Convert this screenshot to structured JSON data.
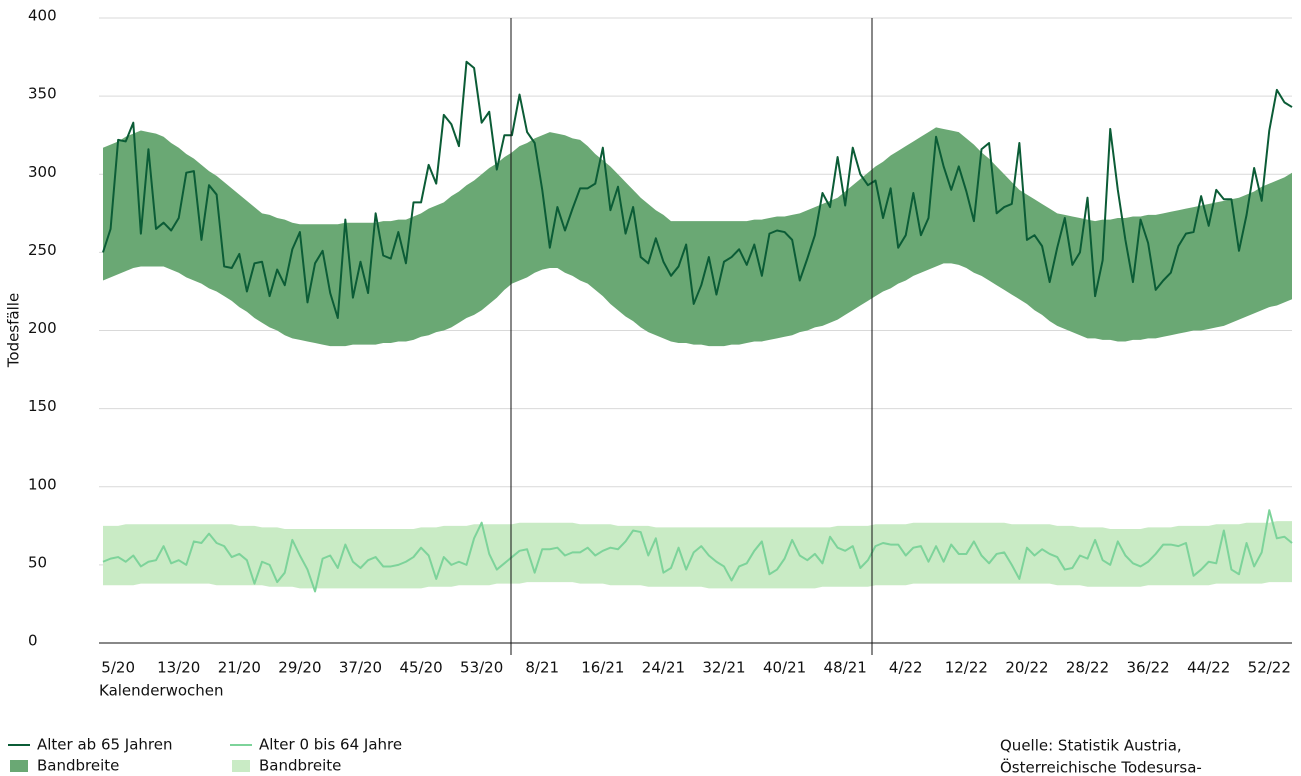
{
  "chart_data": {
    "type": "line",
    "ylabel": "Todesfälle",
    "xlabel": "Kalenderwochen",
    "source": [
      "Quelle: Statistik Austria,",
      "Österreichische Todesursa-"
    ],
    "ylim": [
      0,
      400
    ],
    "yticks": [
      0,
      50,
      100,
      150,
      200,
      250,
      300,
      350,
      400
    ],
    "grid": true,
    "categories": [
      null,
      null,
      "5/20",
      null,
      null,
      null,
      null,
      null,
      null,
      null,
      "13/20",
      null,
      null,
      null,
      null,
      null,
      null,
      null,
      "21/20",
      null,
      null,
      null,
      null,
      null,
      null,
      null,
      "29/20",
      null,
      null,
      null,
      null,
      null,
      null,
      null,
      "37/20",
      null,
      null,
      null,
      null,
      null,
      null,
      null,
      "45/20",
      null,
      null,
      null,
      null,
      null,
      null,
      null,
      "53/20",
      null,
      null,
      null,
      null,
      null,
      null,
      null,
      "8/21",
      null,
      null,
      null,
      null,
      null,
      null,
      null,
      "16/21",
      null,
      null,
      null,
      null,
      null,
      null,
      null,
      "24/21",
      null,
      null,
      null,
      null,
      null,
      null,
      null,
      "32/21",
      null,
      null,
      null,
      null,
      null,
      null,
      null,
      "40/21",
      null,
      null,
      null,
      null,
      null,
      null,
      null,
      "48/21",
      null,
      null,
      null,
      null,
      null,
      null,
      null,
      "4/22",
      null,
      null,
      null,
      null,
      null,
      null,
      null,
      "12/22",
      null,
      null,
      null,
      null,
      null,
      null,
      null,
      "20/22",
      null,
      null,
      null,
      null,
      null,
      null,
      null,
      "28/22",
      null,
      null,
      null,
      null,
      null,
      null,
      null,
      "36/22",
      null,
      null,
      null,
      null,
      null,
      null,
      null,
      "44/22",
      null,
      null,
      null,
      null,
      null,
      null,
      null,
      "52/22",
      null,
      null,
      null
    ],
    "series": [
      {
        "name": "Alter ab 65 Jahren",
        "color": "#0b5c36",
        "values": [
          250,
          265,
          322,
          321,
          333,
          262,
          316,
          265,
          269,
          264,
          272,
          301,
          302,
          258,
          293,
          287,
          241,
          240,
          249,
          225,
          243,
          244,
          222,
          239,
          229,
          252,
          263,
          218,
          243,
          251,
          224,
          208,
          271,
          221,
          244,
          224,
          275,
          248,
          246,
          263,
          243,
          282,
          282,
          306,
          294,
          338,
          332,
          318,
          372,
          368,
          333,
          340,
          303,
          325,
          325,
          351,
          327,
          320,
          290,
          253,
          279,
          264,
          278,
          291,
          291,
          294,
          317,
          277,
          292,
          262,
          279,
          247,
          243,
          259,
          244,
          235,
          241,
          255,
          217,
          229,
          247,
          223,
          244,
          247,
          252,
          242,
          255,
          235,
          262,
          264,
          263,
          258,
          232,
          246,
          261,
          288,
          279,
          311,
          280,
          317,
          300,
          293,
          296,
          272,
          291,
          253,
          261,
          288,
          261,
          272,
          324,
          305,
          290,
          305,
          289,
          270,
          316,
          320,
          275,
          279,
          281,
          320,
          258,
          261,
          254,
          231,
          253,
          272,
          242,
          250,
          285,
          222,
          245,
          329,
          290,
          258,
          231,
          271,
          256,
          226,
          232,
          237,
          254,
          262,
          263,
          286,
          267,
          290,
          284,
          284,
          251,
          274,
          304,
          283,
          328,
          354,
          346,
          343
        ]
      },
      {
        "name": "Bandbreite",
        "color": "#6aa874",
        "upper": [
          317,
          319,
          321,
          324,
          326,
          328,
          327,
          326,
          324,
          320,
          317,
          313,
          310,
          306,
          302,
          299,
          295,
          291,
          287,
          283,
          279,
          275,
          274,
          272,
          271,
          269,
          268,
          268,
          268,
          268,
          268,
          268,
          269,
          269,
          269,
          269,
          269,
          270,
          270,
          271,
          271,
          273,
          275,
          278,
          280,
          282,
          286,
          289,
          293,
          296,
          300,
          304,
          307,
          311,
          314,
          318,
          320,
          323,
          325,
          327,
          326,
          325,
          323,
          322,
          318,
          313,
          309,
          305,
          300,
          295,
          290,
          285,
          281,
          277,
          274,
          270,
          270,
          270,
          270,
          270,
          270,
          270,
          270,
          270,
          270,
          270,
          271,
          271,
          272,
          273,
          273,
          274,
          275,
          277,
          279,
          281,
          283,
          285,
          289,
          293,
          297,
          301,
          305,
          308,
          312,
          315,
          318,
          321,
          324,
          327,
          330,
          329,
          328,
          327,
          323,
          319,
          314,
          310,
          305,
          300,
          295,
          290,
          287,
          284,
          281,
          278,
          275,
          274,
          273,
          272,
          271,
          270,
          271,
          271,
          272,
          272,
          273,
          273,
          274,
          274,
          275,
          276,
          277,
          278,
          279,
          280,
          281,
          282,
          283,
          284,
          285,
          287,
          289,
          292,
          294,
          296,
          298,
          301
        ],
        "lower": [
          232,
          234,
          236,
          238,
          240,
          241,
          241,
          241,
          241,
          239,
          237,
          234,
          232,
          230,
          227,
          225,
          222,
          219,
          215,
          212,
          208,
          205,
          202,
          200,
          197,
          195,
          194,
          193,
          192,
          191,
          190,
          190,
          190,
          191,
          191,
          191,
          191,
          192,
          192,
          193,
          193,
          194,
          196,
          197,
          199,
          200,
          202,
          205,
          208,
          210,
          213,
          217,
          221,
          226,
          230,
          232,
          234,
          237,
          239,
          240,
          240,
          237,
          235,
          232,
          230,
          226,
          222,
          217,
          213,
          209,
          206,
          202,
          199,
          197,
          195,
          193,
          192,
          192,
          191,
          191,
          190,
          190,
          190,
          191,
          191,
          192,
          193,
          193,
          194,
          195,
          196,
          197,
          199,
          200,
          202,
          203,
          205,
          207,
          210,
          213,
          216,
          219,
          222,
          225,
          227,
          230,
          232,
          235,
          237,
          239,
          241,
          243,
          243,
          242,
          240,
          237,
          235,
          232,
          229,
          226,
          223,
          220,
          217,
          213,
          210,
          206,
          203,
          201,
          199,
          197,
          195,
          195,
          194,
          194,
          193,
          193,
          194,
          194,
          195,
          195,
          196,
          197,
          198,
          199,
          200,
          200,
          201,
          202,
          203,
          205,
          207,
          209,
          211,
          213,
          215,
          216,
          218,
          220
        ]
      },
      {
        "name": "Alter 0 bis 64 Jahre",
        "color": "#7dd39a",
        "values": [
          52,
          54,
          55,
          52,
          56,
          49,
          52,
          53,
          62,
          51,
          53,
          50,
          65,
          64,
          70,
          64,
          62,
          55,
          57,
          53,
          38,
          52,
          50,
          39,
          45,
          66,
          56,
          47,
          33,
          54,
          56,
          48,
          63,
          52,
          48,
          53,
          55,
          49,
          49,
          50,
          52,
          55,
          61,
          56,
          41,
          55,
          50,
          52,
          50,
          67,
          77,
          57,
          47,
          51,
          55,
          59,
          60,
          45,
          60,
          60,
          61,
          56,
          58,
          58,
          61,
          56,
          59,
          61,
          60,
          65,
          72,
          71,
          56,
          67,
          45,
          48,
          61,
          47,
          58,
          62,
          56,
          52,
          49,
          40,
          49,
          51,
          59,
          65,
          44,
          47,
          54,
          66,
          56,
          53,
          57,
          51,
          68,
          61,
          59,
          62,
          48,
          53,
          62,
          64,
          63,
          63,
          56,
          61,
          62,
          52,
          62,
          52,
          63,
          57,
          57,
          65,
          56,
          51,
          57,
          58,
          50,
          41,
          61,
          56,
          60,
          57,
          55,
          47,
          48,
          56,
          54,
          66,
          53,
          50,
          65,
          56,
          51,
          49,
          52,
          57,
          63,
          63,
          62,
          64,
          43,
          47,
          52,
          51,
          72,
          47,
          44,
          64,
          49,
          58,
          85,
          67,
          68,
          64
        ]
      },
      {
        "name": "Bandbreite",
        "color": "#c9ebc5",
        "upper": [
          75,
          75,
          75,
          76,
          76,
          76,
          76,
          76,
          76,
          76,
          76,
          76,
          76,
          76,
          76,
          76,
          76,
          76,
          75,
          75,
          75,
          74,
          74,
          74,
          73,
          73,
          73,
          73,
          73,
          73,
          73,
          73,
          73,
          73,
          73,
          73,
          73,
          73,
          73,
          73,
          73,
          73,
          74,
          74,
          74,
          75,
          75,
          75,
          75,
          76,
          76,
          76,
          76,
          76,
          76,
          77,
          77,
          77,
          77,
          77,
          77,
          77,
          77,
          76,
          76,
          76,
          76,
          76,
          75,
          75,
          75,
          75,
          75,
          74,
          74,
          74,
          74,
          74,
          74,
          74,
          74,
          74,
          74,
          74,
          74,
          74,
          74,
          74,
          74,
          74,
          74,
          74,
          74,
          74,
          74,
          74,
          74,
          75,
          75,
          75,
          75,
          75,
          76,
          76,
          76,
          76,
          76,
          77,
          77,
          77,
          77,
          77,
          77,
          77,
          77,
          77,
          77,
          77,
          77,
          77,
          76,
          76,
          76,
          76,
          76,
          76,
          75,
          75,
          75,
          74,
          74,
          74,
          74,
          73,
          73,
          73,
          73,
          73,
          74,
          74,
          74,
          74,
          75,
          75,
          75,
          75,
          75,
          76,
          76,
          76,
          76,
          77,
          77,
          77,
          77,
          78,
          78,
          78
        ],
        "lower": [
          37,
          37,
          37,
          37,
          37,
          38,
          38,
          38,
          38,
          38,
          38,
          38,
          38,
          38,
          38,
          37,
          37,
          37,
          37,
          37,
          37,
          37,
          36,
          36,
          36,
          36,
          35,
          35,
          35,
          35,
          35,
          35,
          35,
          35,
          35,
          35,
          35,
          35,
          35,
          35,
          35,
          35,
          35,
          36,
          36,
          36,
          36,
          37,
          37,
          37,
          37,
          37,
          38,
          38,
          38,
          38,
          39,
          39,
          39,
          39,
          39,
          39,
          39,
          38,
          38,
          38,
          38,
          37,
          37,
          37,
          37,
          37,
          36,
          36,
          36,
          36,
          36,
          36,
          36,
          36,
          35,
          35,
          35,
          35,
          35,
          35,
          35,
          35,
          35,
          35,
          35,
          35,
          35,
          35,
          35,
          36,
          36,
          36,
          36,
          36,
          36,
          36,
          37,
          37,
          37,
          37,
          37,
          38,
          38,
          38,
          38,
          38,
          38,
          38,
          38,
          38,
          38,
          38,
          38,
          38,
          38,
          38,
          38,
          38,
          38,
          38,
          37,
          37,
          37,
          37,
          36,
          36,
          36,
          36,
          36,
          36,
          36,
          36,
          37,
          37,
          37,
          37,
          37,
          37,
          37,
          37,
          37,
          38,
          38,
          38,
          38,
          38,
          38,
          38,
          39,
          39,
          39,
          39
        ]
      }
    ]
  }
}
